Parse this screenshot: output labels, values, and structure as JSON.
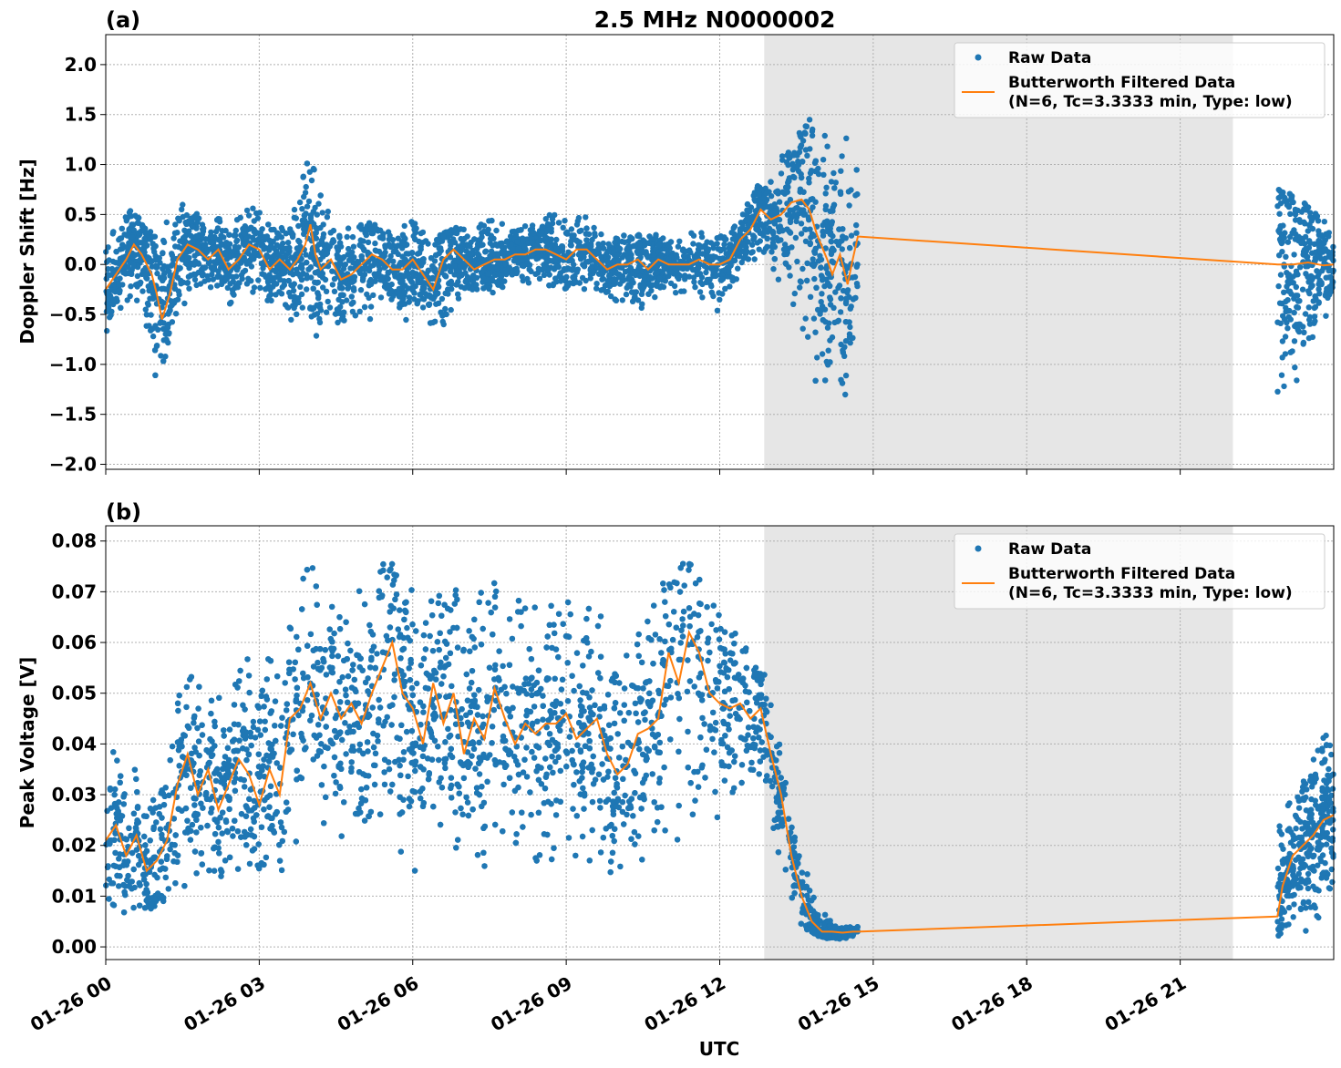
{
  "figure_title": "2.5 MHz N0000002",
  "colors": {
    "raw": "#1f77b4",
    "filtered": "#ff7f0e",
    "shade": "#e6e6e6",
    "grid": "#b0b0b0"
  },
  "shared_x": {
    "label": "UTC",
    "range_hours": [
      0,
      24
    ],
    "ticks": [
      {
        "hour": 0,
        "label": "01-26 00"
      },
      {
        "hour": 3,
        "label": "01-26 03"
      },
      {
        "hour": 6,
        "label": "01-26 06"
      },
      {
        "hour": 9,
        "label": "01-26 09"
      },
      {
        "hour": 12,
        "label": "01-26 12"
      },
      {
        "hour": 15,
        "label": "01-26 15"
      },
      {
        "hour": 18,
        "label": "01-26 18"
      },
      {
        "hour": 21,
        "label": "01-26 21"
      }
    ],
    "shaded_interval_hours": [
      12.87,
      22.03
    ]
  },
  "chart_data": [
    {
      "type": "scatter",
      "panel_label": "(a)",
      "ylabel": "Doppler Shift [Hz]",
      "ylim": [
        -2.05,
        2.3
      ],
      "yticks": [
        {
          "v": 2.0,
          "label": "2.0"
        },
        {
          "v": 1.5,
          "label": "1.5"
        },
        {
          "v": 1.0,
          "label": "1.0"
        },
        {
          "v": 0.5,
          "label": "0.5"
        },
        {
          "v": 0.0,
          "label": "0.0"
        },
        {
          "v": -0.5,
          "label": "−0.5"
        },
        {
          "v": -1.0,
          "label": "−1.0"
        },
        {
          "v": -1.5,
          "label": "−1.5"
        },
        {
          "v": -2.0,
          "label": "−2.0"
        }
      ],
      "grid": true,
      "legend_position": "top-right",
      "legend": {
        "raw": "Raw Data",
        "filtered_line1": "Butterworth Filtered Data",
        "filtered_line2": "(N=6, Tc=3.3333 min, Type: low)"
      },
      "series": [
        {
          "name": "Butterworth Filtered Data",
          "x": [
            0,
            0.2,
            0.4,
            0.55,
            0.7,
            0.9,
            1.0,
            1.1,
            1.25,
            1.4,
            1.6,
            1.8,
            2.0,
            2.2,
            2.4,
            2.6,
            2.8,
            3.0,
            3.2,
            3.4,
            3.6,
            3.75,
            3.9,
            4.0,
            4.1,
            4.2,
            4.4,
            4.6,
            4.8,
            5.0,
            5.2,
            5.4,
            5.6,
            5.8,
            6.0,
            6.2,
            6.4,
            6.6,
            6.8,
            7.0,
            7.2,
            7.4,
            7.6,
            7.8,
            8.0,
            8.2,
            8.4,
            8.6,
            8.8,
            9.0,
            9.2,
            9.4,
            9.6,
            9.8,
            10.0,
            10.2,
            10.4,
            10.6,
            10.8,
            11.0,
            11.2,
            11.4,
            11.6,
            11.8,
            12.0,
            12.2,
            12.4,
            12.6,
            12.8,
            13.0,
            13.2,
            13.4,
            13.6,
            13.75,
            13.9,
            14.1,
            14.2,
            14.35,
            14.5,
            14.6,
            14.7,
            22.9,
            23.2,
            23.5,
            23.8,
            24.0
          ],
          "y": [
            -0.25,
            -0.1,
            0.05,
            0.2,
            0.1,
            -0.1,
            -0.3,
            -0.55,
            -0.3,
            0.05,
            0.2,
            0.15,
            0.05,
            0.15,
            -0.05,
            0.05,
            0.2,
            0.15,
            -0.05,
            0.05,
            -0.05,
            0.05,
            0.2,
            0.4,
            0.1,
            -0.05,
            0.05,
            -0.15,
            -0.1,
            0.0,
            0.1,
            0.05,
            -0.05,
            -0.05,
            0.05,
            -0.1,
            -0.25,
            0.05,
            0.15,
            0.05,
            -0.05,
            0.0,
            0.05,
            0.05,
            0.1,
            0.1,
            0.15,
            0.15,
            0.1,
            0.05,
            0.15,
            0.15,
            0.05,
            -0.05,
            0.0,
            0.0,
            0.05,
            -0.05,
            0.05,
            0.0,
            0.0,
            0.0,
            0.05,
            0.0,
            0.0,
            0.05,
            0.25,
            0.35,
            0.55,
            0.45,
            0.5,
            0.62,
            0.65,
            0.55,
            0.3,
            0.05,
            -0.1,
            0.1,
            -0.2,
            0.05,
            0.28,
            0.0,
            0.0,
            0.02,
            -0.01,
            0.0
          ]
        },
        {
          "name": "Raw Data",
          "x": [
            0,
            0.5,
            1.0,
            1.5,
            2.0,
            2.5,
            3.0,
            3.5,
            4.0,
            4.5,
            5.0,
            5.5,
            6.0,
            6.5,
            7.0,
            7.5,
            8.0,
            8.5,
            9.0,
            9.5,
            10.0,
            10.5,
            11.0,
            11.5,
            12.0,
            12.5,
            13.0,
            13.5,
            14.0,
            14.5,
            14.7,
            22.9,
            23.2,
            23.5,
            23.8,
            24.0
          ],
          "upper": [
            0.3,
            0.55,
            0.3,
            0.65,
            0.45,
            0.5,
            0.6,
            0.4,
            1.1,
            0.4,
            0.45,
            0.4,
            0.45,
            0.3,
            0.4,
            0.45,
            0.4,
            0.5,
            0.6,
            0.5,
            0.3,
            0.3,
            0.35,
            0.35,
            0.3,
            0.6,
            1.0,
            1.3,
            1.6,
            1.4,
            1.1,
            0.8,
            0.7,
            0.6,
            0.45,
            0.5
          ],
          "lower": [
            -0.75,
            -0.4,
            -1.2,
            -0.4,
            -0.35,
            -0.4,
            -0.3,
            -0.5,
            -0.95,
            -0.7,
            -0.6,
            -0.5,
            -0.6,
            -0.8,
            -0.3,
            -0.3,
            -0.25,
            -0.2,
            -0.25,
            -0.25,
            -0.4,
            -0.45,
            -0.3,
            -0.3,
            -0.5,
            -0.1,
            0.0,
            -0.6,
            -1.75,
            -1.7,
            -1.0,
            -1.85,
            -1.3,
            -1.0,
            -0.8,
            -0.15
          ]
        }
      ]
    },
    {
      "type": "scatter",
      "panel_label": "(b)",
      "ylabel": "Peak Voltage [V]",
      "ylim": [
        -0.0025,
        0.083
      ],
      "yticks": [
        {
          "v": 0.08,
          "label": "0.08"
        },
        {
          "v": 0.07,
          "label": "0.07"
        },
        {
          "v": 0.06,
          "label": "0.06"
        },
        {
          "v": 0.05,
          "label": "0.05"
        },
        {
          "v": 0.04,
          "label": "0.04"
        },
        {
          "v": 0.03,
          "label": "0.03"
        },
        {
          "v": 0.02,
          "label": "0.02"
        },
        {
          "v": 0.01,
          "label": "0.01"
        },
        {
          "v": 0.0,
          "label": "0.00"
        }
      ],
      "grid": true,
      "legend_position": "top-right",
      "legend": {
        "raw": "Raw Data",
        "filtered_line1": "Butterworth Filtered Data",
        "filtered_line2": "(N=6, Tc=3.3333 min, Type: low)"
      },
      "series": [
        {
          "name": "Butterworth Filtered Data",
          "x": [
            0,
            0.2,
            0.4,
            0.6,
            0.8,
            1.0,
            1.2,
            1.4,
            1.6,
            1.8,
            2.0,
            2.2,
            2.4,
            2.6,
            2.8,
            3.0,
            3.2,
            3.4,
            3.6,
            3.8,
            4.0,
            4.2,
            4.4,
            4.6,
            4.8,
            5.0,
            5.2,
            5.4,
            5.6,
            5.8,
            6.0,
            6.2,
            6.4,
            6.6,
            6.8,
            7.0,
            7.2,
            7.4,
            7.6,
            7.8,
            8.0,
            8.2,
            8.4,
            8.6,
            8.8,
            9.0,
            9.2,
            9.4,
            9.6,
            9.8,
            10.0,
            10.2,
            10.4,
            10.6,
            10.8,
            11.0,
            11.2,
            11.4,
            11.6,
            11.8,
            12.0,
            12.2,
            12.4,
            12.6,
            12.8,
            13.0,
            13.2,
            13.4,
            13.6,
            13.8,
            14.0,
            14.2,
            14.4,
            14.6,
            14.7,
            22.9,
            23.0,
            23.2,
            23.4,
            23.6,
            23.8,
            24.0
          ],
          "y": [
            0.021,
            0.024,
            0.018,
            0.022,
            0.015,
            0.017,
            0.021,
            0.032,
            0.038,
            0.03,
            0.035,
            0.027,
            0.032,
            0.037,
            0.034,
            0.028,
            0.035,
            0.03,
            0.045,
            0.047,
            0.052,
            0.045,
            0.05,
            0.045,
            0.048,
            0.044,
            0.05,
            0.055,
            0.06,
            0.05,
            0.047,
            0.04,
            0.052,
            0.044,
            0.05,
            0.038,
            0.045,
            0.041,
            0.051,
            0.045,
            0.04,
            0.044,
            0.042,
            0.044,
            0.044,
            0.046,
            0.041,
            0.043,
            0.045,
            0.038,
            0.034,
            0.036,
            0.042,
            0.043,
            0.045,
            0.058,
            0.052,
            0.062,
            0.058,
            0.05,
            0.048,
            0.047,
            0.048,
            0.045,
            0.047,
            0.038,
            0.03,
            0.018,
            0.01,
            0.005,
            0.003,
            0.003,
            0.0028,
            0.003,
            0.003,
            0.006,
            0.012,
            0.018,
            0.02,
            0.022,
            0.025,
            0.026
          ]
        },
        {
          "name": "Raw Data",
          "x": [
            0,
            0.5,
            1.0,
            1.5,
            2.0,
            2.5,
            3.0,
            3.5,
            4.0,
            4.5,
            5.0,
            5.5,
            6.0,
            6.5,
            7.0,
            7.5,
            8.0,
            8.5,
            9.0,
            9.5,
            10.0,
            10.5,
            11.0,
            11.5,
            12.0,
            12.5,
            13.0,
            13.3,
            13.6,
            13.9,
            14.2,
            14.7,
            22.9,
            23.3,
            23.7,
            24.0
          ],
          "upper": [
            0.04,
            0.04,
            0.035,
            0.055,
            0.055,
            0.055,
            0.06,
            0.07,
            0.075,
            0.072,
            0.074,
            0.076,
            0.074,
            0.072,
            0.07,
            0.073,
            0.068,
            0.07,
            0.068,
            0.068,
            0.065,
            0.062,
            0.075,
            0.079,
            0.065,
            0.06,
            0.052,
            0.04,
            0.02,
            0.009,
            0.005,
            0.004,
            0.026,
            0.03,
            0.04,
            0.044
          ],
          "lower": [
            0.008,
            0.006,
            0.008,
            0.012,
            0.009,
            0.012,
            0.015,
            0.015,
            0.018,
            0.018,
            0.018,
            0.017,
            0.012,
            0.014,
            0.014,
            0.015,
            0.014,
            0.013,
            0.014,
            0.013,
            0.014,
            0.014,
            0.018,
            0.02,
            0.025,
            0.03,
            0.025,
            0.012,
            0.004,
            0.002,
            0.0015,
            0.0015,
            0.002,
            0.002,
            0.003,
            0.005
          ]
        }
      ]
    }
  ]
}
